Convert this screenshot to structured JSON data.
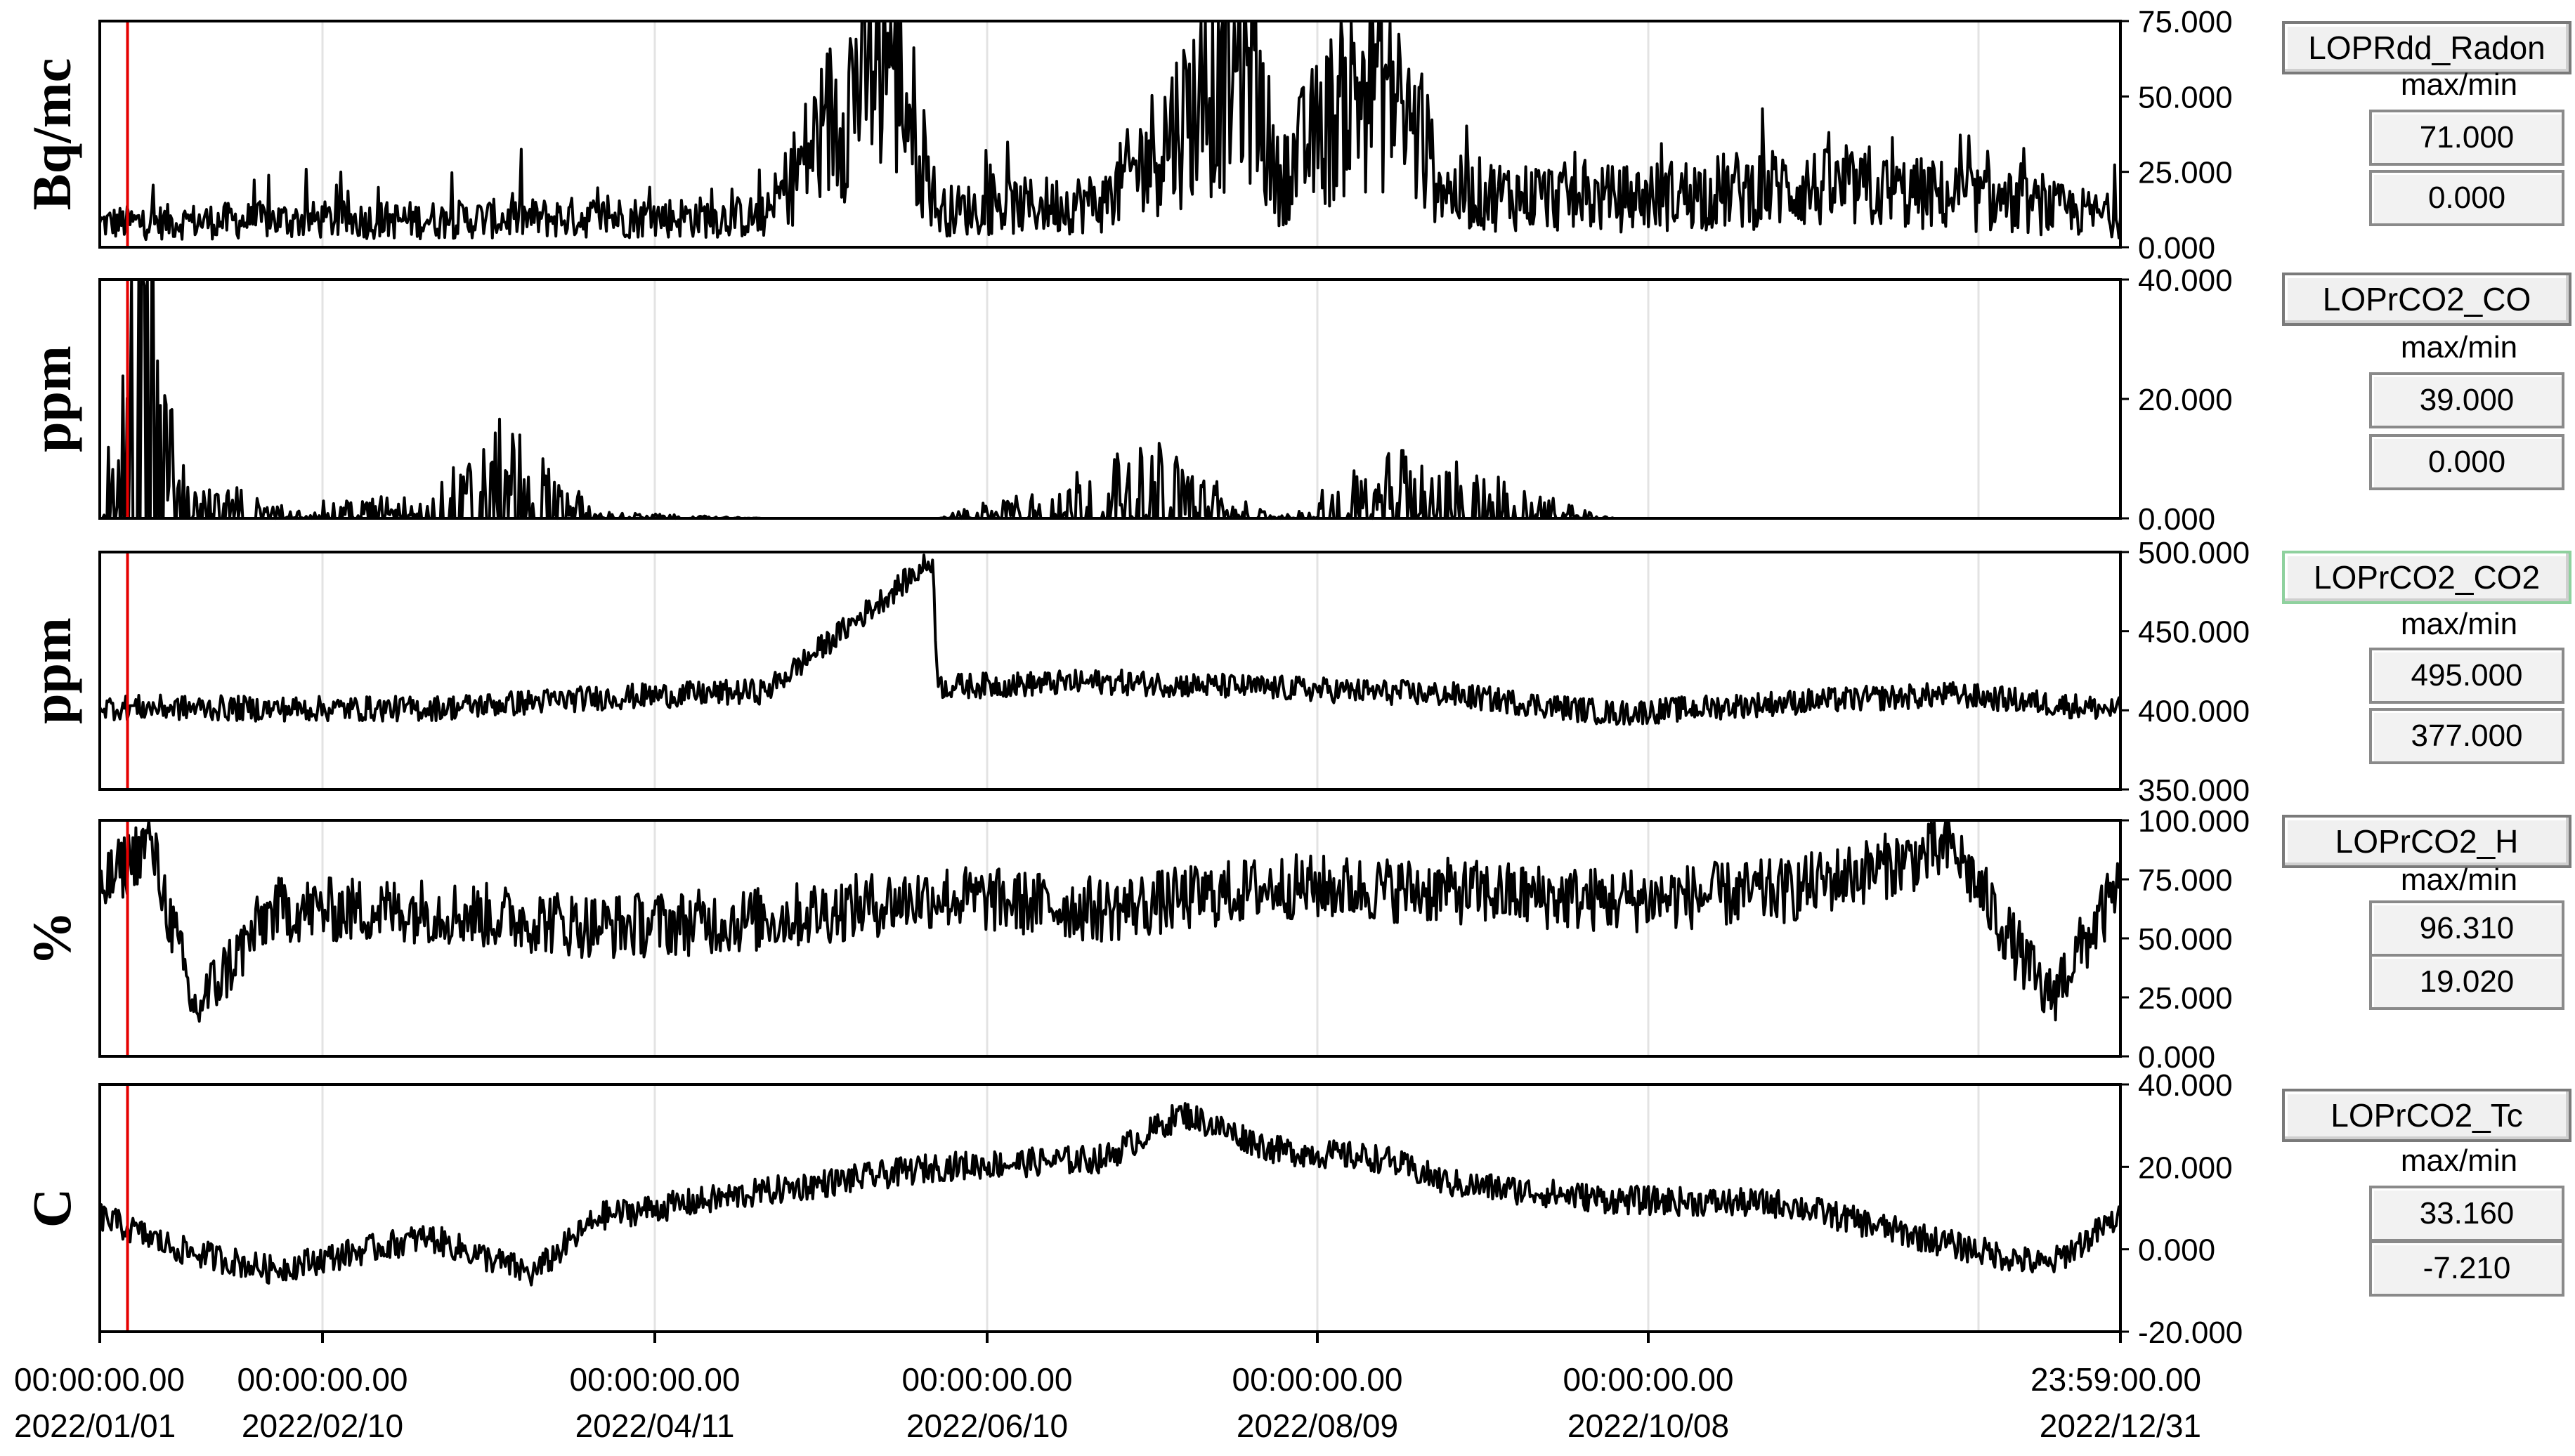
{
  "x_axis": {
    "ticks": [
      {
        "time": "00:00:00.00",
        "date": "2022/01/01"
      },
      {
        "time": "00:00:00.00",
        "date": "2022/02/10"
      },
      {
        "time": "00:00:00.00",
        "date": "2022/04/11"
      },
      {
        "time": "00:00:00.00",
        "date": "2022/06/10"
      },
      {
        "time": "00:00:00.00",
        "date": "2022/08/09"
      },
      {
        "time": "00:00:00.00",
        "date": "2022/10/08"
      },
      {
        "time": "23:59:00.00",
        "date": "2022/12/31"
      }
    ]
  },
  "cursor": {
    "color": "#e60000",
    "date": "2022/01/06"
  },
  "colors": {
    "trace": "#000000",
    "grid": "#e3e3e3",
    "frame": "#000000",
    "cursor": "#e60000"
  },
  "panels": [
    {
      "name": "LOPRdd_Radon",
      "unit": "Bq/mc",
      "maxmin_label": "max/min",
      "max": "71.000",
      "min": "0.000",
      "active": false
    },
    {
      "name": "LOPrCO2_CO",
      "unit": "ppm",
      "maxmin_label": "max/min",
      "max": "39.000",
      "min": "0.000",
      "active": false
    },
    {
      "name": "LOPrCO2_CO2",
      "unit": "ppm",
      "maxmin_label": "max/min",
      "max": "495.000",
      "min": "377.000",
      "active": true
    },
    {
      "name": "LOPrCO2_H",
      "unit": "%",
      "maxmin_label": "max/min",
      "max": "96.310",
      "min": "19.020",
      "active": false
    },
    {
      "name": "LOPrCO2_Tc",
      "unit": "C",
      "maxmin_label": "max/min",
      "max": "33.160",
      "min": "-7.210",
      "active": false
    }
  ],
  "chart_data": [
    {
      "type": "line",
      "series_name": "LOPRdd_Radon",
      "ylabel": "Bq/mc",
      "ylim": [
        0,
        75
      ],
      "yticks": [
        "75.000",
        "50.000",
        "25.000",
        "0.000"
      ],
      "ytick_values": [
        75,
        50,
        25,
        0
      ],
      "x": [
        "2022/01/01",
        "2022/02/01",
        "2022/03/01",
        "2022/04/01",
        "2022/05/01",
        "2022/05/23",
        "2022/06/01",
        "2022/07/01",
        "2022/07/27",
        "2022/08/01",
        "2022/08/19",
        "2022/09/01",
        "2022/10/01",
        "2022/11/01",
        "2022/12/01",
        "2022/12/31"
      ],
      "y": [
        8,
        9,
        9,
        10,
        10,
        71,
        12,
        15,
        66,
        22,
        60,
        18,
        16,
        20,
        17,
        10
      ],
      "grid": true
    },
    {
      "type": "line",
      "series_name": "LOPrCO2_CO",
      "ylabel": "ppm",
      "ylim": [
        0,
        40
      ],
      "yticks": [
        "40.000",
        "20.000",
        "0.000"
      ],
      "ytick_values": [
        40,
        20,
        0
      ],
      "x": [
        "2022/01/01",
        "2022/01/09",
        "2022/01/15",
        "2022/02/01",
        "2022/03/01",
        "2022/03/15",
        "2022/04/01",
        "2022/05/01",
        "2022/06/01",
        "2022/07/10",
        "2022/08/01",
        "2022/08/24",
        "2022/10/01",
        "2022/12/31"
      ],
      "y": [
        0,
        39,
        5,
        1,
        2,
        8,
        0.5,
        0,
        0,
        6,
        0,
        6,
        0,
        0
      ],
      "grid": true
    },
    {
      "type": "line",
      "series_name": "LOPrCO2_CO2",
      "ylabel": "ppm",
      "ylim": [
        350,
        500
      ],
      "yticks": [
        "500.000",
        "450.000",
        "400.000",
        "350.000"
      ],
      "ytick_values": [
        500,
        450,
        400,
        350
      ],
      "x": [
        "2022/01/01",
        "2022/02/01",
        "2022/03/01",
        "2022/04/01",
        "2022/05/01",
        "2022/05/31",
        "2022/06/01",
        "2022/07/01",
        "2022/08/01",
        "2022/09/01",
        "2022/10/01",
        "2022/11/01",
        "2022/12/01",
        "2022/12/31"
      ],
      "y": [
        402,
        401,
        401,
        408,
        412,
        495,
        415,
        418,
        414,
        410,
        398,
        405,
        410,
        400
      ],
      "grid": true
    },
    {
      "type": "line",
      "series_name": "LOPrCO2_H",
      "ylabel": "%",
      "ylim": [
        0,
        100
      ],
      "yticks": [
        "100.000",
        "75.000",
        "50.000",
        "25.000",
        "0.000"
      ],
      "ytick_values": [
        100,
        75,
        50,
        25,
        0
      ],
      "x": [
        "2022/01/01",
        "2022/01/10",
        "2022/01/18",
        "2022/02/01",
        "2022/03/01",
        "2022/04/01",
        "2022/05/01",
        "2022/06/01",
        "2022/07/01",
        "2022/08/01",
        "2022/09/01",
        "2022/10/01",
        "2022/11/01",
        "2022/12/01",
        "2022/12/18",
        "2022/12/31"
      ],
      "y": [
        70,
        92,
        19,
        62,
        62,
        55,
        58,
        68,
        62,
        72,
        70,
        66,
        70,
        88,
        24,
        72
      ],
      "grid": true
    },
    {
      "type": "line",
      "series_name": "LOPrCO2_Tc",
      "ylabel": "C",
      "ylim": [
        -20,
        40
      ],
      "yticks": [
        "40.000",
        "20.000",
        "0.000",
        "-20.000"
      ],
      "ytick_values": [
        40,
        20,
        0,
        -20
      ],
      "x": [
        "2022/01/01",
        "2022/01/15",
        "2022/02/01",
        "2022/03/01",
        "2022/03/20",
        "2022/04/01",
        "2022/05/01",
        "2022/06/01",
        "2022/07/01",
        "2022/07/15",
        "2022/08/01",
        "2022/08/20",
        "2022/09/01",
        "2022/10/01",
        "2022/11/01",
        "2022/12/01",
        "2022/12/18",
        "2022/12/31"
      ],
      "y": [
        8,
        0,
        -5,
        3,
        -6,
        8,
        14,
        20,
        22,
        33,
        24,
        22,
        16,
        12,
        11,
        1,
        -4,
        8
      ],
      "grid": true
    }
  ]
}
